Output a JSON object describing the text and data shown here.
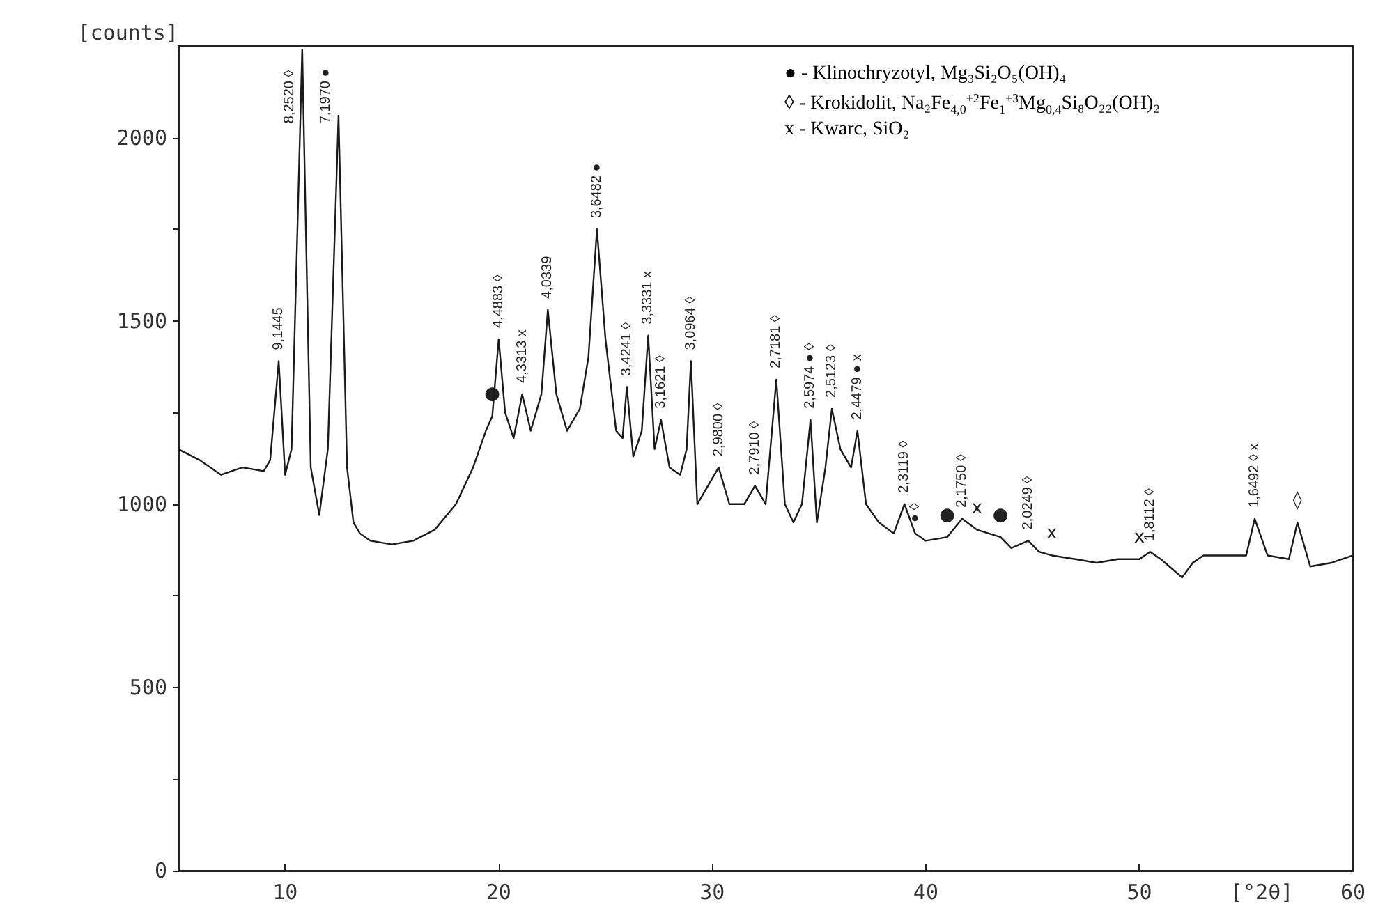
{
  "chart_data": {
    "type": "line",
    "ylabel": "[counts]",
    "xlabel": "[°2θ]",
    "xlim": [
      5,
      60
    ],
    "ylim": [
      0,
      2250
    ],
    "xticks": [
      10,
      20,
      30,
      40,
      50,
      60
    ],
    "yticks": [
      0,
      {
        "value": 250,
        "label": null
      },
      500,
      {
        "value": 750,
        "label": null
      },
      1000,
      {
        "value": 1250,
        "label": null
      },
      1500,
      {
        "value": 1750,
        "label": null
      },
      2000
    ],
    "grid": false,
    "marker": "none",
    "line_style": "solid",
    "series": [
      {
        "color": "#1a1a1a",
        "x": [
          5,
          6,
          7,
          8,
          9,
          9.3,
          9.7,
          10,
          10.3,
          10.8,
          11.2,
          11.6,
          12,
          12.5,
          12.9,
          13.2,
          13.5,
          14,
          15,
          16,
          17,
          18,
          18.8,
          19.4,
          19.7,
          20,
          20.3,
          20.7,
          21.1,
          21.5,
          22,
          22.3,
          22.7,
          23.2,
          23.8,
          24.2,
          24.6,
          25,
          25.5,
          25.8,
          26,
          26.3,
          26.7,
          27,
          27.3,
          27.6,
          28,
          28.5,
          28.8,
          29,
          29.3,
          29.8,
          30.3,
          30.8,
          31.5,
          32,
          32.5,
          33,
          33.4,
          33.8,
          34.2,
          34.6,
          34.9,
          35.3,
          35.6,
          36,
          36.5,
          36.8,
          37.2,
          37.8,
          38.5,
          39,
          39.5,
          40,
          41,
          41.7,
          42.4,
          43.5,
          44,
          44.8,
          45.3,
          45.9,
          47,
          48,
          49,
          50,
          50.5,
          51,
          52,
          52.5,
          53,
          54,
          55,
          55.4,
          56,
          57,
          57.4,
          58,
          59,
          60
        ],
        "values": [
          1150,
          1120,
          1080,
          1100,
          1090,
          1120,
          1390,
          1080,
          1150,
          2240,
          1100,
          970,
          1150,
          2060,
          1100,
          950,
          920,
          900,
          890,
          900,
          930,
          1000,
          1100,
          1200,
          1240,
          1450,
          1250,
          1180,
          1300,
          1200,
          1300,
          1530,
          1300,
          1200,
          1260,
          1400,
          1750,
          1450,
          1200,
          1180,
          1320,
          1130,
          1200,
          1460,
          1150,
          1230,
          1100,
          1080,
          1150,
          1390,
          1000,
          1050,
          1100,
          1000,
          1000,
          1050,
          1000,
          1340,
          1000,
          950,
          1000,
          1230,
          950,
          1100,
          1260,
          1150,
          1100,
          1200,
          1000,
          950,
          920,
          1000,
          920,
          900,
          910,
          960,
          930,
          910,
          880,
          900,
          870,
          860,
          850,
          840,
          850,
          850,
          870,
          850,
          800,
          840,
          860,
          860,
          860,
          960,
          860,
          850,
          950,
          830,
          840,
          860
        ]
      }
    ],
    "annotations": [
      "● - Klinochryzotyl, Mg₃Si₂O₅(OH)₄",
      "◊ - Krokidolit, Na₂Fe$_{4,0}$$^{+2}$Fe$_{1}$$^{+3}$Mg$_{0,4}$Si₈O₂₂(OH)₂",
      "x - Kwarc, SiO₂",
      {
        "text": "9,1445",
        "x": 9.7,
        "y": 1390
      },
      {
        "text": "8,2520 ◊",
        "x": 10.8,
        "y": 2240
      },
      {
        "text": "7,1970 ●",
        "x": 12.5,
        "y": 2060
      },
      {
        "text": "●",
        "x": 19.7,
        "y": 1240
      },
      {
        "text": "4,4883 ◊",
        "x": 20,
        "y": 1450
      },
      {
        "text": "4,3313 x",
        "x": 21.1,
        "y": 1300
      },
      {
        "text": "4,0339",
        "x": 22.3,
        "y": 1530
      },
      {
        "text": "3,6482 ●",
        "x": 24.6,
        "y": 1750
      },
      {
        "text": "3,4241 ◊",
        "x": 26,
        "y": 1320
      },
      {
        "text": "3,3331 x",
        "x": 27,
        "y": 1460
      },
      {
        "text": "3,1621 ◊",
        "x": 27.6,
        "y": 1230
      },
      {
        "text": "3,0964 ◊",
        "x": 29,
        "y": 1390
      },
      {
        "text": "2,9800 ◊",
        "x": 30.3,
        "y": 1100
      },
      {
        "text": "2,7910 ◊",
        "x": 32,
        "y": 1050
      },
      {
        "text": "2,7181 ◊",
        "x": 33,
        "y": 1340
      },
      {
        "text": "2,5974 ● ◊",
        "x": 34.6,
        "y": 1230
      },
      {
        "text": "2,5123 ◊",
        "x": 35.6,
        "y": 1260
      },
      {
        "text": "2,4479 ● x",
        "x": 36.8,
        "y": 1200
      },
      {
        "text": "2,3119 ◊",
        "x": 39,
        "y": 1000
      },
      {
        "text": "● ◊",
        "x": 39.5,
        "y": 920
      },
      {
        "text": "●",
        "x": 41,
        "y": 910
      },
      {
        "text": "2,1750 ◊",
        "x": 41.7,
        "y": 960
      },
      {
        "text": "x",
        "x": 42.4,
        "y": 930
      },
      {
        "text": "●",
        "x": 43.5,
        "y": 910
      },
      {
        "text": "2,0249 ◊",
        "x": 44.8,
        "y": 900
      },
      {
        "text": "x",
        "x": 45.9,
        "y": 860
      },
      {
        "text": "x",
        "x": 50,
        "y": 850
      },
      {
        "text": "1,8112 ◊",
        "x": 50.5,
        "y": 870
      },
      {
        "text": "1,6492 ◊ x",
        "x": 55.4,
        "y": 960
      },
      {
        "text": "◊",
        "x": 57.4,
        "y": 950
      }
    ]
  }
}
